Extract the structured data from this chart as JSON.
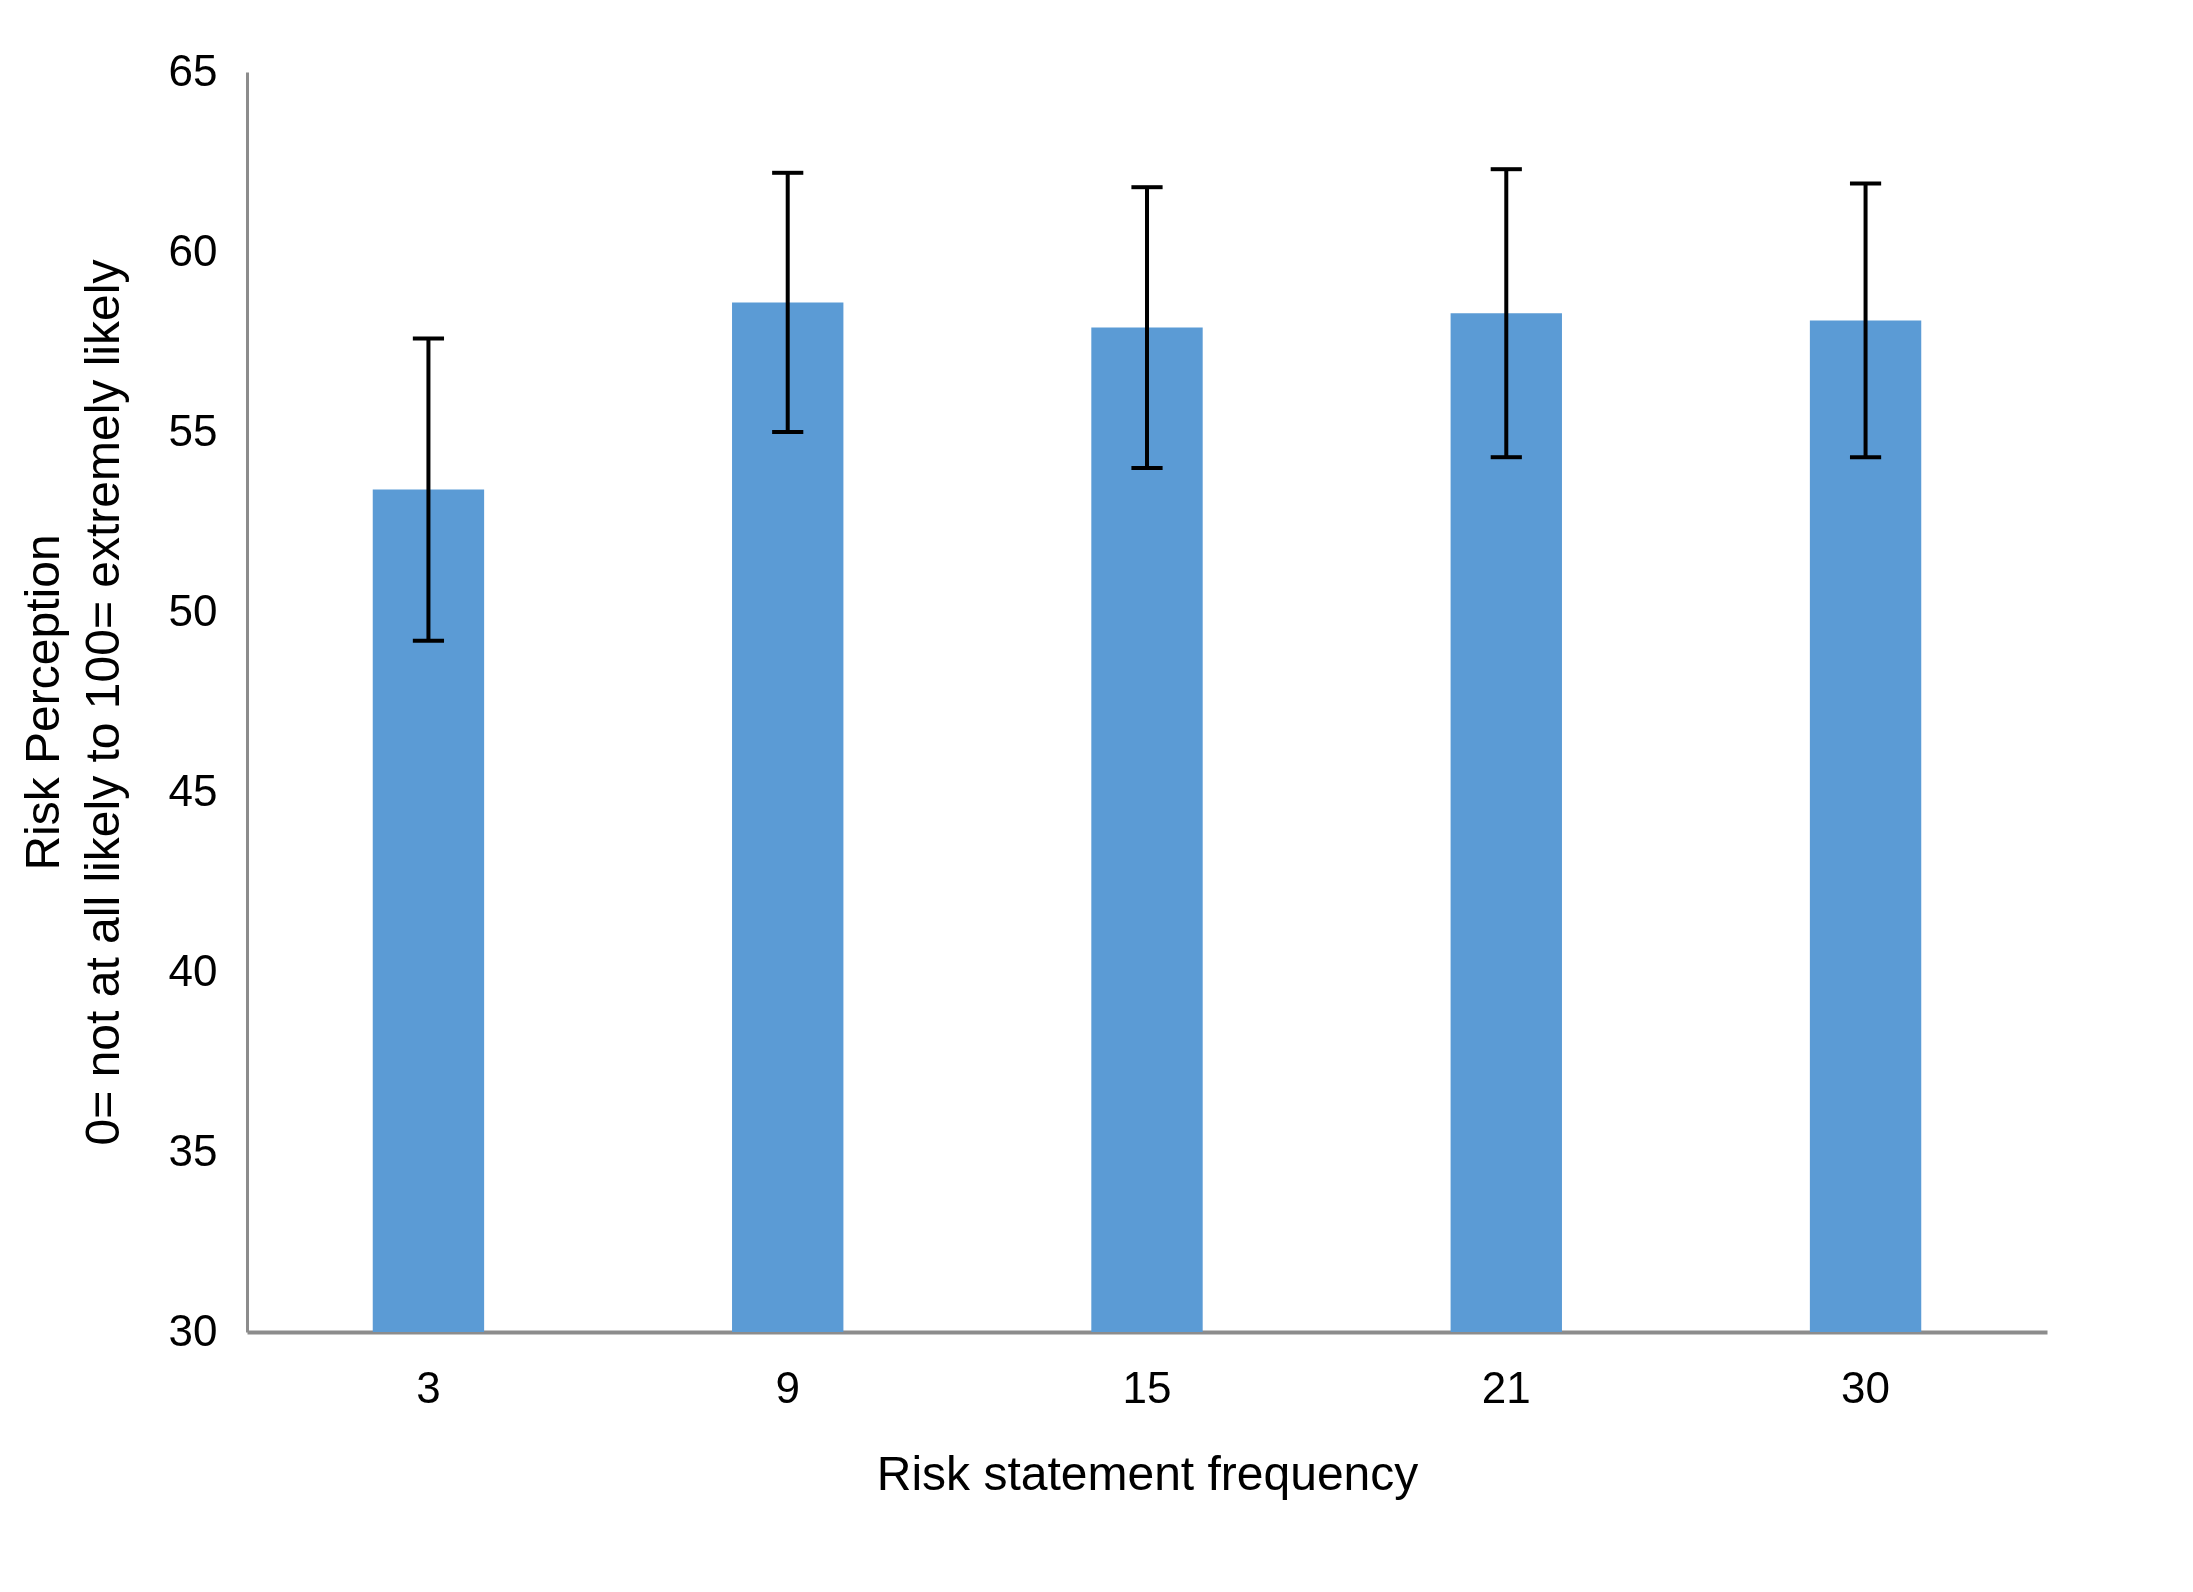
{
  "chart_data": {
    "type": "bar",
    "xlabel": "Risk statement frequency",
    "ylabel": "Risk Perception\n0= not at all likely  to 100= extremely likely",
    "categories": [
      "3",
      "9",
      "15",
      "21",
      "30"
    ],
    "values": [
      53.4,
      58.6,
      57.9,
      58.3,
      58.1
    ],
    "errors": [
      4.2,
      3.6,
      3.9,
      4.0,
      3.8
    ],
    "color": "#5b9bd5",
    "ylim": [
      30,
      65
    ],
    "yticks": [
      30,
      35,
      40,
      45,
      50,
      55,
      60,
      65
    ],
    "grid": false
  }
}
